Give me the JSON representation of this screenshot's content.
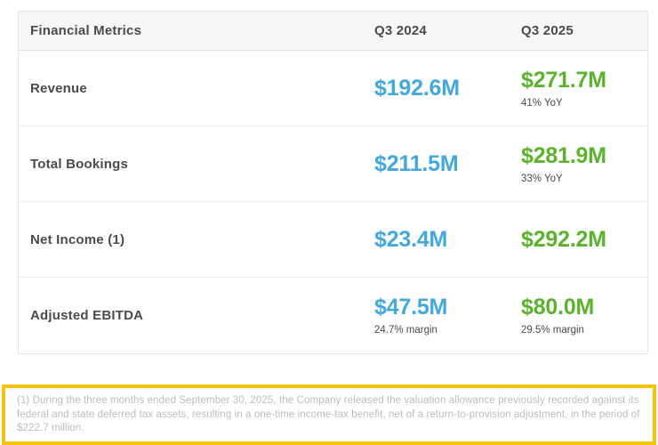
{
  "chart_data": {
    "type": "table",
    "title": "Financial Metrics",
    "columns": [
      "Financial Metrics",
      "Q3 2024",
      "Q3 2025"
    ],
    "rows": [
      {
        "metric": "Revenue",
        "q3_2024_value": "$192.6M",
        "q3_2024_sub": "",
        "q3_2025_value": "$271.7M",
        "q3_2025_sub": "41% YoY"
      },
      {
        "metric": "Total Bookings",
        "q3_2024_value": "$211.5M",
        "q3_2024_sub": "",
        "q3_2025_value": "$281.9M",
        "q3_2025_sub": "33% YoY"
      },
      {
        "metric": "Net Income (1)",
        "q3_2024_value": "$23.4M",
        "q3_2024_sub": "",
        "q3_2025_value": "$292.2M",
        "q3_2025_sub": ""
      },
      {
        "metric": "Adjusted EBITDA",
        "q3_2024_value": "$47.5M",
        "q3_2024_sub": "24.7% margin",
        "q3_2025_value": "$80.0M",
        "q3_2025_sub": "29.5% margin"
      }
    ],
    "numeric": {
      "unit": "USD millions",
      "categories": [
        "Revenue",
        "Total Bookings",
        "Net Income",
        "Adjusted EBITDA"
      ],
      "series": [
        {
          "name": "Q3 2024",
          "values": [
            192.6,
            211.5,
            23.4,
            47.5
          ]
        },
        {
          "name": "Q3 2025",
          "values": [
            271.7,
            281.9,
            292.2,
            80.0
          ]
        }
      ],
      "yoy_growth": {
        "Revenue": "41% YoY",
        "Total Bookings": "33% YoY"
      },
      "margins": {
        "Adjusted EBITDA Q3 2024": "24.7% margin",
        "Adjusted EBITDA Q3 2025": "29.5% margin"
      }
    }
  },
  "footnote": {
    "text": "(1) During the three months ended September 30, 2025, the Company released the valuation allowance previously recorded against its federal and state deferred tax assets, resulting in a one-time income-tax benefit, net of a return-to-provision adjustment, in the period of $222.7 million."
  },
  "colors": {
    "q3_2024_value": "#43a8dc",
    "q3_2025_value": "#5ab32b",
    "header_text": "#4b4b4b",
    "header_background": "#f7f7f6",
    "table_border": "#e6e6e6",
    "footnote_highlight_border": "#f4c50d",
    "footnote_text": "#bdbdbd"
  }
}
